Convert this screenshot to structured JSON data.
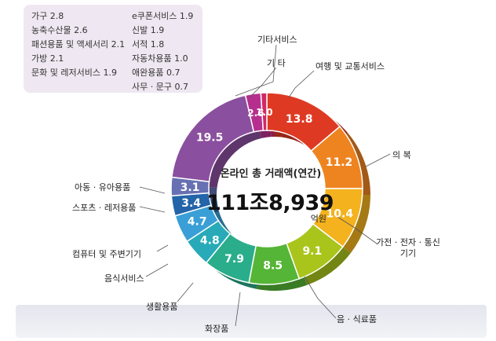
{
  "chart_data": {
    "type": "pie",
    "title": "온라인 총 거래액(연간)",
    "total": "111조8,939",
    "unit": "억원",
    "slices": [
      {
        "label": "여행 및 교통서비스",
        "value": 13.8,
        "color": "#de3a23"
      },
      {
        "label": "의 복",
        "value": 11.2,
        "color": "#ee8420"
      },
      {
        "label": "가전 · 전자 · 통신기기",
        "value": 10.4,
        "color": "#f3b21e"
      },
      {
        "label": "음 · 식료품",
        "value": 9.1,
        "color": "#a9c51c"
      },
      {
        "label": "화장품",
        "value": 8.5,
        "color": "#55b536"
      },
      {
        "label": "생활용품",
        "value": 7.9,
        "color": "#2aad8a"
      },
      {
        "label": "음식서비스",
        "value": 4.8,
        "color": "#28aab8"
      },
      {
        "label": "컴퓨터 및 주변기기",
        "value": 4.7,
        "color": "#3a9fd6"
      },
      {
        "label": "스포츠 · 레저용품",
        "value": 3.4,
        "color": "#2464a8"
      },
      {
        "label": "아동 · 유아용품",
        "value": 3.1,
        "color": "#6670b2"
      },
      {
        "label": "",
        "value": 19.5,
        "color": "#8a4f9e"
      },
      {
        "label": "기 타",
        "value": 2.6,
        "color": "#b62f8f"
      },
      {
        "label": "기타서비스",
        "value": 1.0,
        "color": "#cf2a66"
      }
    ],
    "other_breakdown": [
      {
        "label": "가구",
        "value": "2.8"
      },
      {
        "label": "농축수산물",
        "value": "2.6"
      },
      {
        "label": "패션용품 및 액세서리",
        "value": "2.1"
      },
      {
        "label": "가방",
        "value": "2.1"
      },
      {
        "label": "문화 및 레저서비스",
        "value": "1.9"
      },
      {
        "label": "e쿠폰서비스",
        "value": "1.9"
      },
      {
        "label": "신발",
        "value": "1.9"
      },
      {
        "label": "서적",
        "value": "1.8"
      },
      {
        "label": "자동차용품",
        "value": "1.0"
      },
      {
        "label": "애완용품",
        "value": "0.7"
      },
      {
        "label": "사무 · 문구",
        "value": "0.7"
      }
    ]
  }
}
